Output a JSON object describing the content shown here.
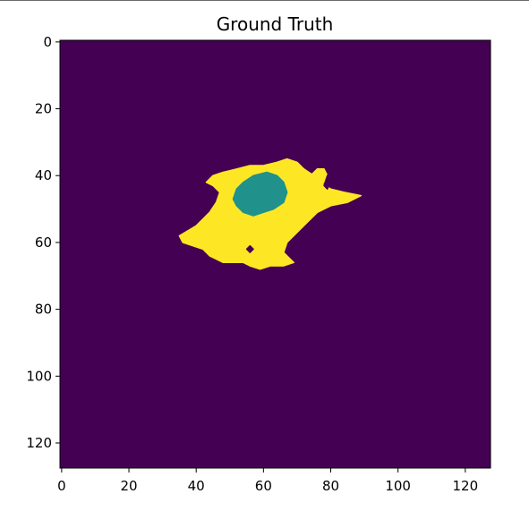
{
  "chart_data": {
    "type": "heatmap",
    "title": "Ground Truth",
    "xlabel": "",
    "ylabel": "",
    "xlim": [
      -0.5,
      127.5
    ],
    "ylim": [
      127.5,
      -0.5
    ],
    "y_axis_inverted": true,
    "xticks": [
      0,
      20,
      40,
      60,
      80,
      100,
      120
    ],
    "yticks": [
      0,
      20,
      40,
      60,
      80,
      100,
      120
    ],
    "xtick_labels": [
      "0",
      "20",
      "40",
      "60",
      "80",
      "100",
      "120"
    ],
    "ytick_labels": [
      "0",
      "20",
      "40",
      "60",
      "80",
      "100",
      "120"
    ],
    "grid": false,
    "colormap": "viridis",
    "classes": [
      {
        "value": 0,
        "color": "#440154"
      },
      {
        "value": 1,
        "color": "#21918c"
      },
      {
        "value": 2,
        "color": "#fde725"
      }
    ],
    "regions": [
      {
        "class_value": 2,
        "polygon": [
          [
            35,
            58
          ],
          [
            40,
            55
          ],
          [
            44,
            51
          ],
          [
            46,
            48
          ],
          [
            47,
            45
          ],
          [
            45,
            43
          ],
          [
            43,
            42
          ],
          [
            45,
            40
          ],
          [
            48,
            39
          ],
          [
            52,
            38
          ],
          [
            56,
            37
          ],
          [
            60,
            37
          ],
          [
            64,
            36
          ],
          [
            67,
            35
          ],
          [
            70,
            36
          ],
          [
            72,
            38
          ],
          [
            75,
            40
          ],
          [
            77,
            42
          ],
          [
            80,
            44
          ],
          [
            84,
            45
          ],
          [
            89,
            46
          ],
          [
            85,
            48
          ],
          [
            80,
            49
          ],
          [
            76,
            51
          ],
          [
            73,
            54
          ],
          [
            70,
            57
          ],
          [
            67,
            60
          ],
          [
            66,
            63
          ],
          [
            68,
            65
          ],
          [
            69,
            66
          ],
          [
            66,
            67
          ],
          [
            62,
            67
          ],
          [
            59,
            68
          ],
          [
            56,
            67
          ],
          [
            54,
            66
          ],
          [
            51,
            66
          ],
          [
            48,
            66
          ],
          [
            46,
            65
          ],
          [
            44,
            64
          ],
          [
            42,
            62
          ],
          [
            39,
            61
          ],
          [
            36,
            60
          ]
        ]
      },
      {
        "class_value": 1,
        "polygon": [
          [
            51,
            47
          ],
          [
            52,
            44
          ],
          [
            54,
            42
          ],
          [
            57,
            40
          ],
          [
            61,
            39
          ],
          [
            64,
            40
          ],
          [
            66,
            42
          ],
          [
            67,
            45
          ],
          [
            66,
            48
          ],
          [
            63,
            50
          ],
          [
            60,
            51
          ],
          [
            57,
            52
          ],
          [
            54,
            51
          ],
          [
            52,
            49
          ]
        ]
      },
      {
        "class_value": 2,
        "polygon": [
          [
            73,
            42
          ],
          [
            74,
            40
          ],
          [
            76,
            38
          ],
          [
            78,
            38
          ],
          [
            79,
            40
          ],
          [
            78,
            42
          ],
          [
            76,
            43
          ]
        ]
      },
      {
        "class_value": 0,
        "polygon": [
          [
            78,
            43
          ],
          [
            79,
            40
          ],
          [
            80,
            39
          ],
          [
            81,
            40
          ],
          [
            80,
            42
          ],
          [
            79,
            44
          ]
        ]
      },
      {
        "class_value": 0,
        "polygon": [
          [
            55,
            62
          ],
          [
            56,
            61
          ],
          [
            57,
            62
          ],
          [
            56,
            63
          ]
        ]
      }
    ]
  }
}
